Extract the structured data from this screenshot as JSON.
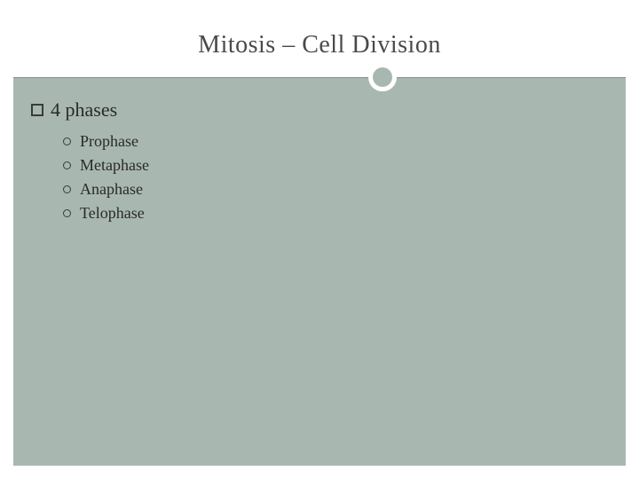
{
  "slide": {
    "title": "Mitosis – Cell Division",
    "title_fontsize": 28,
    "title_color": "#4a4a4a",
    "background_color": "#ffffff",
    "frame_color": "#a8b8b0",
    "divider_line_color": "#888888",
    "divider_circle_border": "#ffffff",
    "heading": {
      "bullet_type": "square",
      "text": "4 phases",
      "fontsize": 22,
      "color": "#2a2a2a"
    },
    "sub_items": [
      {
        "text": "Prophase"
      },
      {
        "text": "Metaphase"
      },
      {
        "text": "Anaphase"
      },
      {
        "text": "Telophase"
      }
    ],
    "sub_item_style": {
      "bullet_type": "circle",
      "fontsize": 18,
      "color": "#2a2a2a"
    }
  }
}
